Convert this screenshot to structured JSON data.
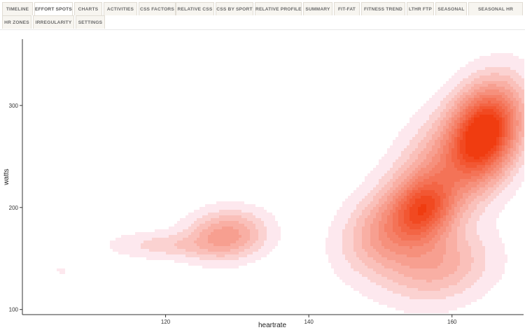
{
  "tabs": [
    {
      "label": "TIMELINE",
      "active": false
    },
    {
      "label": "EFFORT SPOTS",
      "active": true
    },
    {
      "label": "CHARTS",
      "active": false
    },
    {
      "label": "ACTIVITIES",
      "active": false
    },
    {
      "label": "CSS FACTORS",
      "active": false
    },
    {
      "label": "RELATIVE CSS",
      "active": false
    },
    {
      "label": "CSS BY SPORT",
      "active": false
    },
    {
      "label": "RELATIVE PROFILE",
      "active": false
    },
    {
      "label": "SUMMARY",
      "active": false
    },
    {
      "label": "FIT-FAT",
      "active": false
    },
    {
      "label": "FITNESS TREND",
      "active": false
    },
    {
      "label": "LTHR FTP",
      "active": false
    },
    {
      "label": "SEASONAL",
      "active": false
    },
    {
      "label": "SEASONAL HR",
      "active": false
    },
    {
      "label": "HR ZONES",
      "active": false
    },
    {
      "label": "IRREGULARITY",
      "active": false
    },
    {
      "label": "SETTINGS",
      "active": false
    }
  ],
  "chart_data": {
    "type": "heatmap",
    "subtype": "2d density contour",
    "xlabel": "heartrate",
    "ylabel": "watts",
    "xlim": [
      100,
      170
    ],
    "ylim": [
      95,
      365
    ],
    "x_ticks": [
      120,
      140,
      160
    ],
    "y_ticks": [
      100,
      200,
      300
    ],
    "grid": false,
    "color_low": "#fde8ee",
    "color_high": "#f03c10",
    "clusters": [
      {
        "x": 164.5,
        "y": 273,
        "sx": 2.8,
        "sy": 26,
        "rho": 0.25,
        "weight": 1.0
      },
      {
        "x": 156.0,
        "y": 199,
        "sx": 2.6,
        "sy": 20,
        "rho": 0.2,
        "weight": 0.55
      },
      {
        "x": 152.0,
        "y": 180,
        "sx": 4.0,
        "sy": 24,
        "rho": 0.3,
        "weight": 0.3
      },
      {
        "x": 157.5,
        "y": 145,
        "sx": 4.5,
        "sy": 22,
        "rho": 0.1,
        "weight": 0.22
      },
      {
        "x": 160.0,
        "y": 240,
        "sx": 5.0,
        "sy": 40,
        "rho": 0.55,
        "weight": 0.35
      },
      {
        "x": 128.5,
        "y": 173,
        "sx": 3.2,
        "sy": 14,
        "rho": 0.1,
        "weight": 0.28
      },
      {
        "x": 121.0,
        "y": 163,
        "sx": 5.0,
        "sy": 8,
        "rho": 0.0,
        "weight": 0.09
      },
      {
        "x": 105.5,
        "y": 138,
        "sx": 0.6,
        "sy": 3,
        "rho": 0.0,
        "weight": 0.03
      }
    ],
    "contour_levels": [
      0.018,
      0.06,
      0.11,
      0.17,
      0.24,
      0.32,
      0.41,
      0.5,
      0.6,
      0.7,
      0.8,
      0.9
    ]
  }
}
